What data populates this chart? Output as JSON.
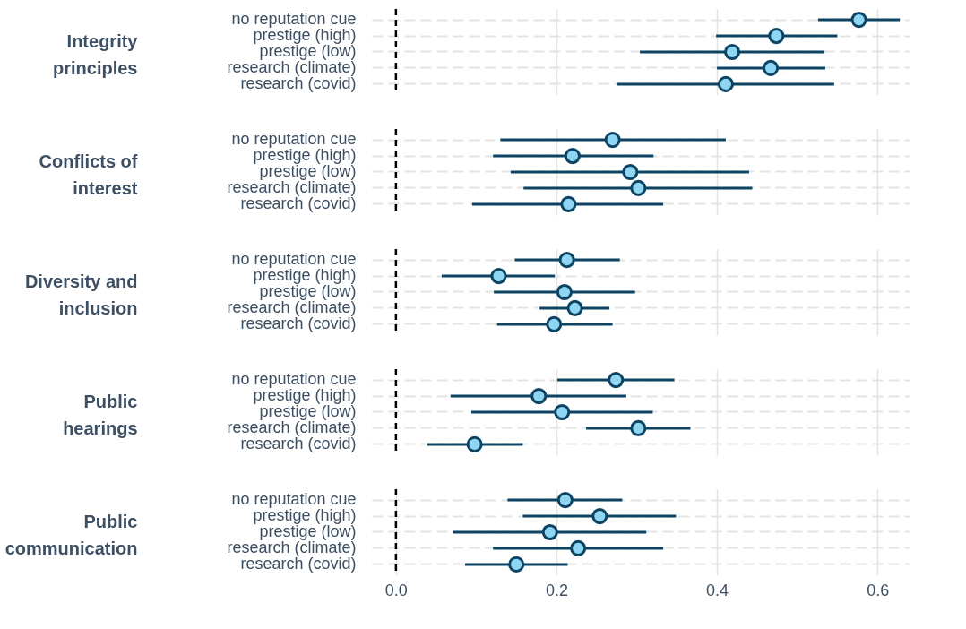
{
  "chart_data": [
    {
      "type": "scatter",
      "orientation": "horizontal",
      "ylabel": "Integrity principles",
      "categories": [
        "no reputation cue",
        "prestige (high)",
        "prestige (low)",
        "research (climate)",
        "research (covid)"
      ],
      "series": [
        {
          "color": "#8fd6f2",
          "values": [
            0.577,
            0.474,
            0.419,
            0.467,
            0.411
          ],
          "errors": [
            [
              0.526,
              0.628
            ],
            [
              0.399,
              0.55
            ],
            [
              0.304,
              0.534
            ],
            [
              0.4,
              0.535
            ],
            [
              0.275,
              0.546
            ]
          ]
        }
      ],
      "xlim": [
        -0.03,
        0.64
      ],
      "xticks": [
        0.2,
        0.4,
        0.6
      ],
      "ref_lines": [
        {
          "axis": "x",
          "value": 0,
          "color": "#000000",
          "line_style": "dashed"
        }
      ],
      "grid": true,
      "marker": "circle",
      "tick_labels": "y"
    },
    {
      "type": "scatter",
      "orientation": "horizontal",
      "ylabel": "Conflicts of interest",
      "categories": [
        "no reputation cue",
        "prestige (high)",
        "prestige (low)",
        "research (climate)",
        "research (covid)"
      ],
      "series": [
        {
          "color": "#8fd6f2",
          "values": [
            0.27,
            0.22,
            0.292,
            0.302,
            0.215
          ],
          "errors": [
            [
              0.13,
              0.411
            ],
            [
              0.121,
              0.321
            ],
            [
              0.143,
              0.44
            ],
            [
              0.159,
              0.444
            ],
            [
              0.095,
              0.333
            ]
          ]
        }
      ],
      "xlim": [
        -0.03,
        0.64
      ],
      "xticks": [
        0.2,
        0.4,
        0.6
      ],
      "ref_lines": [
        {
          "axis": "x",
          "value": 0,
          "color": "#000000",
          "line_style": "dashed"
        }
      ],
      "grid": true,
      "marker": "circle",
      "tick_labels": "y"
    },
    {
      "type": "scatter",
      "orientation": "horizontal",
      "ylabel": "Diversity and inclusion",
      "categories": [
        "no reputation cue",
        "prestige (high)",
        "prestige (low)",
        "research (climate)",
        "research (covid)"
      ],
      "series": [
        {
          "color": "#8fd6f2",
          "values": [
            0.213,
            0.128,
            0.21,
            0.223,
            0.197
          ],
          "errors": [
            [
              0.148,
              0.279
            ],
            [
              0.057,
              0.198
            ],
            [
              0.122,
              0.298
            ],
            [
              0.179,
              0.266
            ],
            [
              0.126,
              0.27
            ]
          ]
        }
      ],
      "xlim": [
        -0.03,
        0.64
      ],
      "xticks": [
        0.2,
        0.4,
        0.6
      ],
      "ref_lines": [
        {
          "axis": "x",
          "value": 0,
          "color": "#000000",
          "line_style": "dashed"
        }
      ],
      "grid": true,
      "marker": "circle",
      "tick_labels": "y"
    },
    {
      "type": "scatter",
      "orientation": "horizontal",
      "ylabel": "Public hearings",
      "categories": [
        "no reputation cue",
        "prestige (high)",
        "prestige (low)",
        "research (climate)",
        "research (covid)"
      ],
      "series": [
        {
          "color": "#8fd6f2",
          "values": [
            0.274,
            0.178,
            0.207,
            0.302,
            0.098
          ],
          "errors": [
            [
              0.201,
              0.347
            ],
            [
              0.068,
              0.287
            ],
            [
              0.094,
              0.32
            ],
            [
              0.237,
              0.367
            ],
            [
              0.039,
              0.158
            ]
          ]
        }
      ],
      "xlim": [
        -0.03,
        0.64
      ],
      "xticks": [
        0.2,
        0.4,
        0.6
      ],
      "ref_lines": [
        {
          "axis": "x",
          "value": 0,
          "color": "#000000",
          "line_style": "dashed"
        }
      ],
      "grid": true,
      "marker": "circle",
      "tick_labels": "y"
    },
    {
      "type": "scatter",
      "orientation": "horizontal",
      "ylabel": "Public communication",
      "categories": [
        "no reputation cue",
        "prestige (high)",
        "prestige (low)",
        "research (climate)",
        "research (covid)"
      ],
      "series": [
        {
          "color": "#8fd6f2",
          "values": [
            0.211,
            0.254,
            0.192,
            0.227,
            0.15
          ],
          "errors": [
            [
              0.139,
              0.282
            ],
            [
              0.158,
              0.349
            ],
            [
              0.071,
              0.312
            ],
            [
              0.121,
              0.333
            ],
            [
              0.086,
              0.214
            ]
          ]
        }
      ],
      "xlim": [
        -0.03,
        0.64
      ],
      "ref_lines": [
        {
          "axis": "x",
          "value": 0,
          "color": "#000000",
          "line_style": "dashed"
        }
      ],
      "grid": true,
      "marker": "circle",
      "xticks": [
        {
          "value": 0,
          "label": "0.0"
        },
        0.2,
        0.4,
        0.6
      ]
    }
  ]
}
